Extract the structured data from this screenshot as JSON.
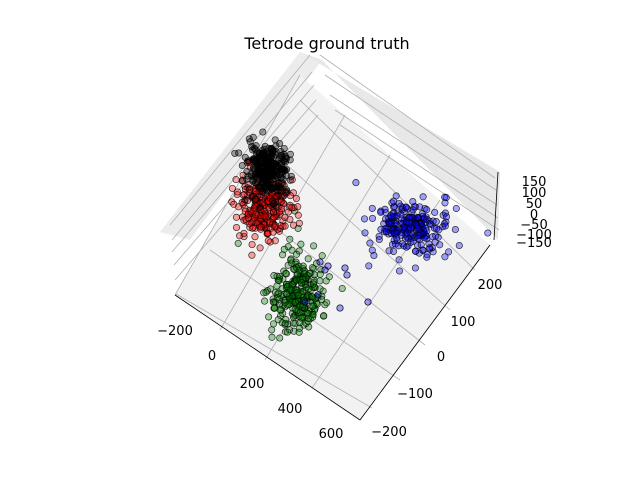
{
  "chart_data": {
    "type": "scatter",
    "title": "Tetrode ground truth",
    "xlabel": "",
    "ylabel": "",
    "zlabel": "",
    "grid": true,
    "projection": "3d",
    "x_ticks": [
      "−200",
      "0",
      "200",
      "400",
      "600"
    ],
    "y_ticks": [
      "−200",
      "−100",
      "0",
      "100",
      "200"
    ],
    "z_ticks": [
      "150",
      "100",
      "50",
      "0",
      "−50",
      "−100",
      "−150"
    ],
    "clusters": [
      {
        "color": "#000000",
        "n": 260,
        "center": [
          -90,
          215
        ],
        "spread": [
          11,
          13
        ]
      },
      {
        "color": "#ff0000",
        "n": 280,
        "center": [
          -95,
          100
        ],
        "spread": [
          13,
          17
        ]
      },
      {
        "color": "#008000",
        "n": 280,
        "center": [
          280,
          130
        ],
        "spread": [
          14,
          20
        ]
      },
      {
        "color": "#0000ff",
        "n": 240,
        "center": [
          380,
          -180
        ],
        "spread": [
          20,
          13
        ]
      }
    ],
    "outliers": [
      {
        "color": "#0000ff",
        "points": [
          [
            180,
            155
          ],
          [
            205,
            155
          ],
          [
            230,
            165
          ],
          [
            290,
            175
          ],
          [
            345,
            190
          ],
          [
            350,
            150
          ],
          [
            385,
            160
          ],
          [
            315,
            120
          ],
          [
            330,
            110
          ]
        ]
      }
    ]
  }
}
